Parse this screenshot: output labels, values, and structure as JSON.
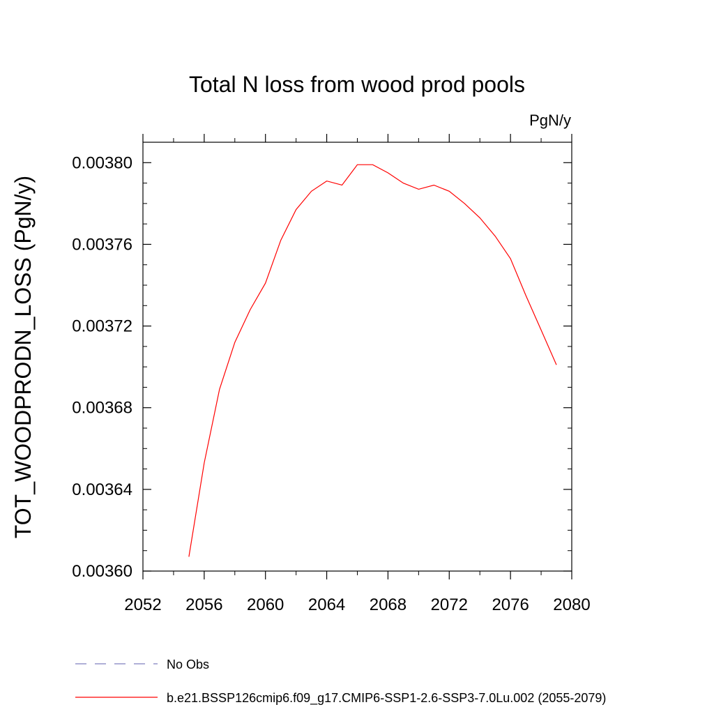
{
  "chart_data": {
    "type": "line",
    "title": "Total N loss from wood prod pools",
    "units": "PgN/y",
    "xlabel": "",
    "ylabel": "TOT_WOODPRODN_LOSS  (PgN/y)",
    "xlim": [
      2052,
      2080
    ],
    "ylim": [
      0.0036,
      0.00381
    ],
    "x_ticks": [
      "2052",
      "2056",
      "2060",
      "2064",
      "2068",
      "2072",
      "2076",
      "2080"
    ],
    "y_ticks": [
      "0.00360",
      "0.00364",
      "0.00368",
      "0.00372",
      "0.00376",
      "0.00380"
    ],
    "grid": false,
    "legend_position": "bottom",
    "series": [
      {
        "name": "b.e21.BSSP126cmip6.f09_g17.CMIP6-SSP1-2.6-SSP3-7.0Lu.002 (2055-2079)",
        "color": "#ff0000",
        "x": [
          2055,
          2056,
          2057,
          2058,
          2059,
          2060,
          2061,
          2062,
          2063,
          2064,
          2065,
          2066,
          2067,
          2068,
          2069,
          2070,
          2071,
          2072,
          2073,
          2074,
          2075,
          2076,
          2077,
          2078,
          2079
        ],
        "y": [
          0.003607,
          0.003653,
          0.003689,
          0.003712,
          0.003728,
          0.003741,
          0.003762,
          0.003777,
          0.003786,
          0.003791,
          0.003789,
          0.003799,
          0.003799,
          0.003795,
          0.00379,
          0.003787,
          0.003789,
          0.003786,
          0.00378,
          0.003773,
          0.003764,
          0.003753,
          0.003735,
          0.003718,
          0.003701
        ]
      }
    ],
    "legend": [
      {
        "label": "No Obs",
        "color": "#7f7fbf",
        "style": "dashed"
      },
      {
        "label": "b.e21.BSSP126cmip6.f09_g17.CMIP6-SSP1-2.6-SSP3-7.0Lu.002 (2055-2079)",
        "color": "#ff0000",
        "style": "solid"
      }
    ]
  }
}
